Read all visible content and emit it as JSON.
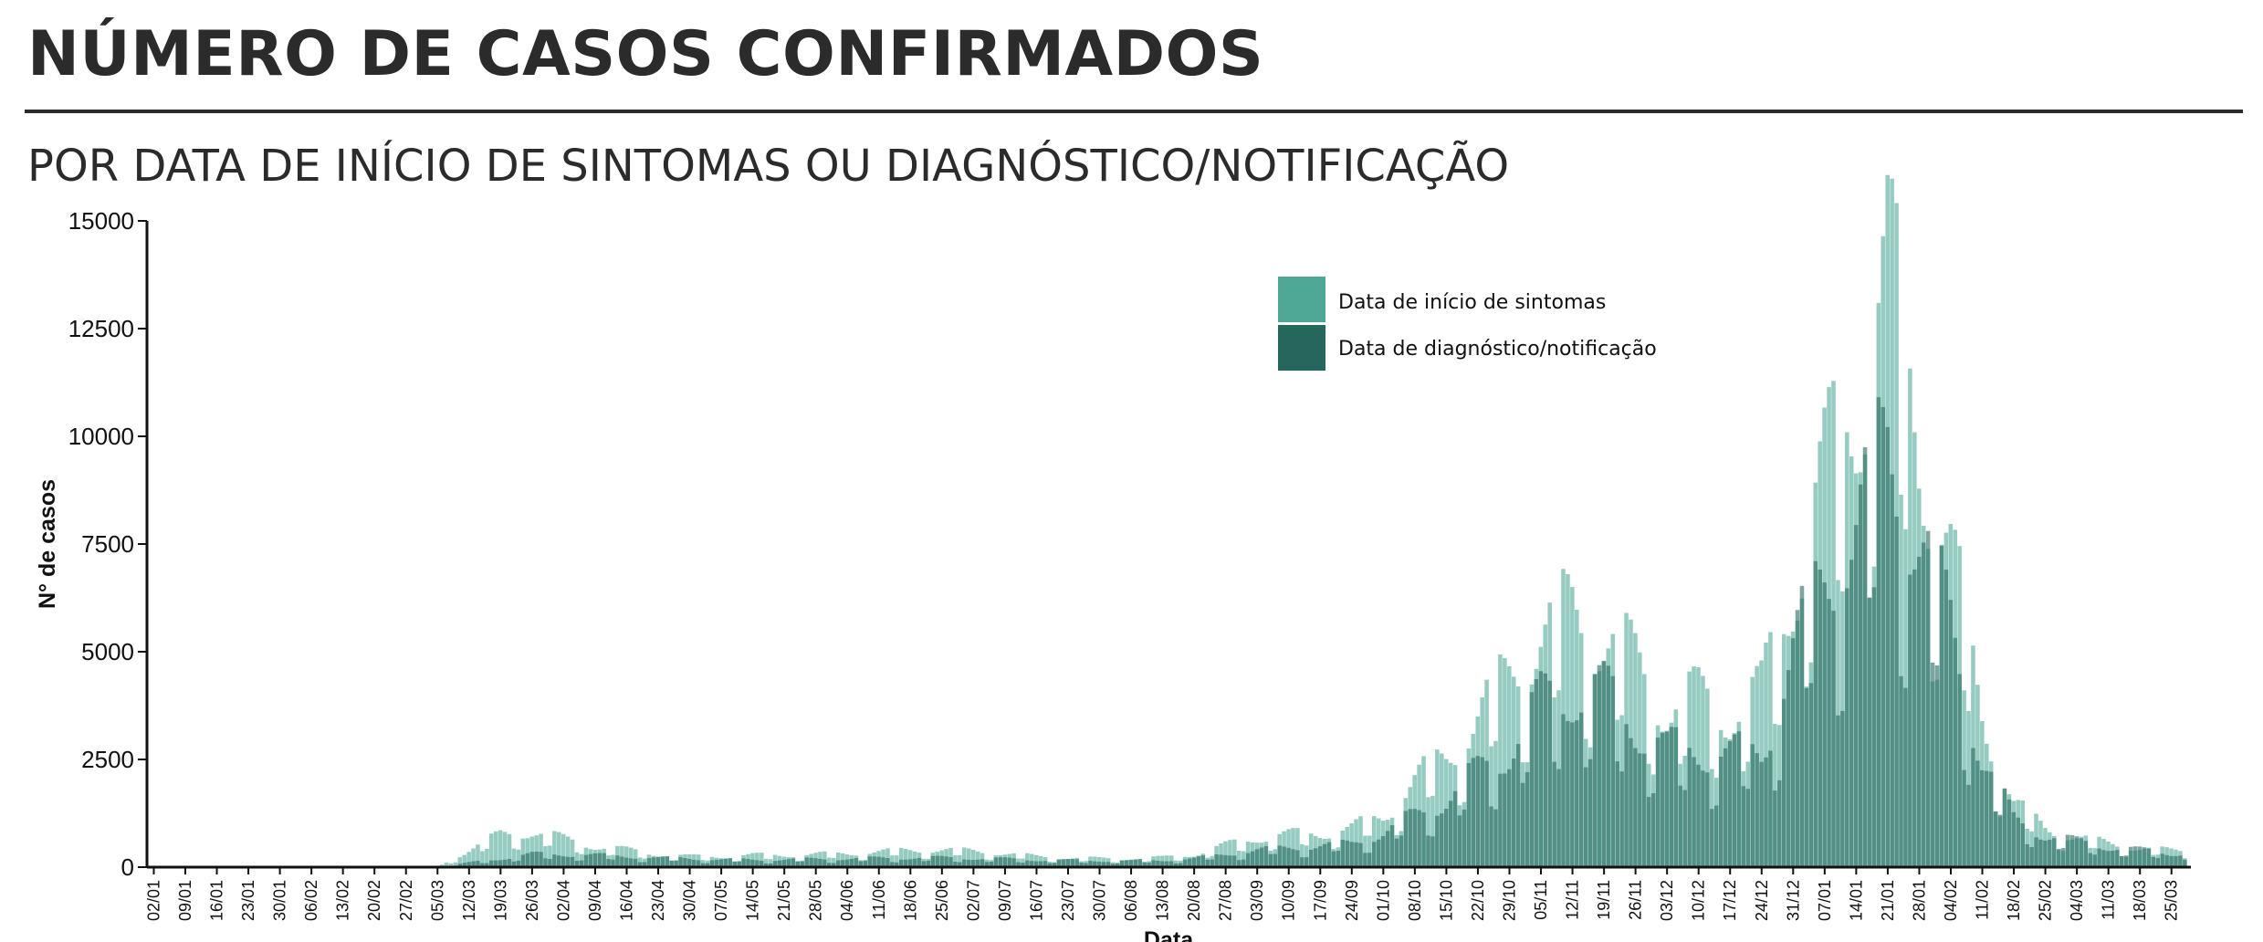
{
  "header": {
    "title": "NÚMERO DE CASOS CONFIRMADOS",
    "subtitle": "POR DATA DE INÍCIO DE SINTOMAS OU DIAGNÓSTICO/NOTIFICAÇÃO"
  },
  "colors": {
    "sintomas": "#4fa896",
    "diagnostico": "#26675d",
    "text": "#2b2b2b"
  },
  "chart_data": {
    "type": "bar",
    "ylabel": "N° de casos",
    "xlabel": "Data",
    "ylim": [
      0,
      15000
    ],
    "yticks": [
      0,
      2500,
      5000,
      7500,
      10000,
      12500,
      15000
    ],
    "ytick_labels": [
      "0",
      "2500",
      "5000",
      "7500",
      "10000",
      "12500",
      "15000"
    ],
    "grid": false,
    "legend_position": "top-right",
    "x_start": "2020-01-02",
    "x_end": "2021-03-28",
    "xtick_labels": [
      "02/01",
      "09/01",
      "16/01",
      "23/01",
      "30/01",
      "06/02",
      "13/02",
      "20/02",
      "27/02",
      "05/03",
      "12/03",
      "19/03",
      "26/03",
      "02/04",
      "09/04",
      "16/04",
      "23/04",
      "30/04",
      "07/05",
      "14/05",
      "21/05",
      "28/05",
      "04/06",
      "11/06",
      "18/06",
      "25/06",
      "02/07",
      "09/07",
      "16/07",
      "23/07",
      "30/07",
      "06/08",
      "13/08",
      "20/08",
      "27/08",
      "03/09",
      "10/09",
      "17/09",
      "24/09",
      "01/10",
      "08/10",
      "15/10",
      "22/10",
      "29/10",
      "05/11",
      "12/11",
      "19/11",
      "26/11",
      "03/12",
      "10/12",
      "17/12",
      "24/12",
      "31/12",
      "07/01",
      "14/01",
      "21/01",
      "28/01",
      "04/02",
      "11/02",
      "18/02",
      "25/02",
      "04/03",
      "11/03",
      "18/03",
      "25/03"
    ],
    "series": [
      {
        "name": "Data de início de sintomas",
        "weekly_values": [
          0,
          0,
          0,
          0,
          0,
          0,
          0,
          0,
          0,
          0,
          400,
          750,
          850,
          650,
          500,
          400,
          300,
          250,
          250,
          280,
          280,
          300,
          320,
          360,
          400,
          400,
          380,
          320,
          250,
          220,
          200,
          200,
          220,
          300,
          500,
          700,
          750,
          800,
          900,
          1200,
          2000,
          2600,
          3500,
          4500,
          5500,
          5900,
          5500,
          4700,
          3800,
          3900,
          3700,
          4000,
          6800,
          9000,
          11000,
          14000,
          10000,
          7300,
          3600,
          1500,
          900,
          700,
          550,
          450,
          380
        ]
      },
      {
        "name": "Data de diagnóstico/notificação",
        "weekly_values": [
          0,
          0,
          0,
          0,
          0,
          0,
          0,
          0,
          0,
          0,
          100,
          200,
          300,
          300,
          280,
          250,
          220,
          200,
          180,
          170,
          180,
          190,
          200,
          210,
          220,
          220,
          210,
          190,
          170,
          160,
          150,
          150,
          160,
          200,
          300,
          400,
          450,
          500,
          550,
          800,
          1200,
          1600,
          2200,
          2800,
          3800,
          4200,
          4000,
          3400,
          2700,
          2800,
          2600,
          2700,
          5000,
          6800,
          8000,
          9800,
          7800,
          5600,
          2600,
          1100,
          750,
          600,
          470,
          400,
          320
        ]
      }
    ]
  }
}
